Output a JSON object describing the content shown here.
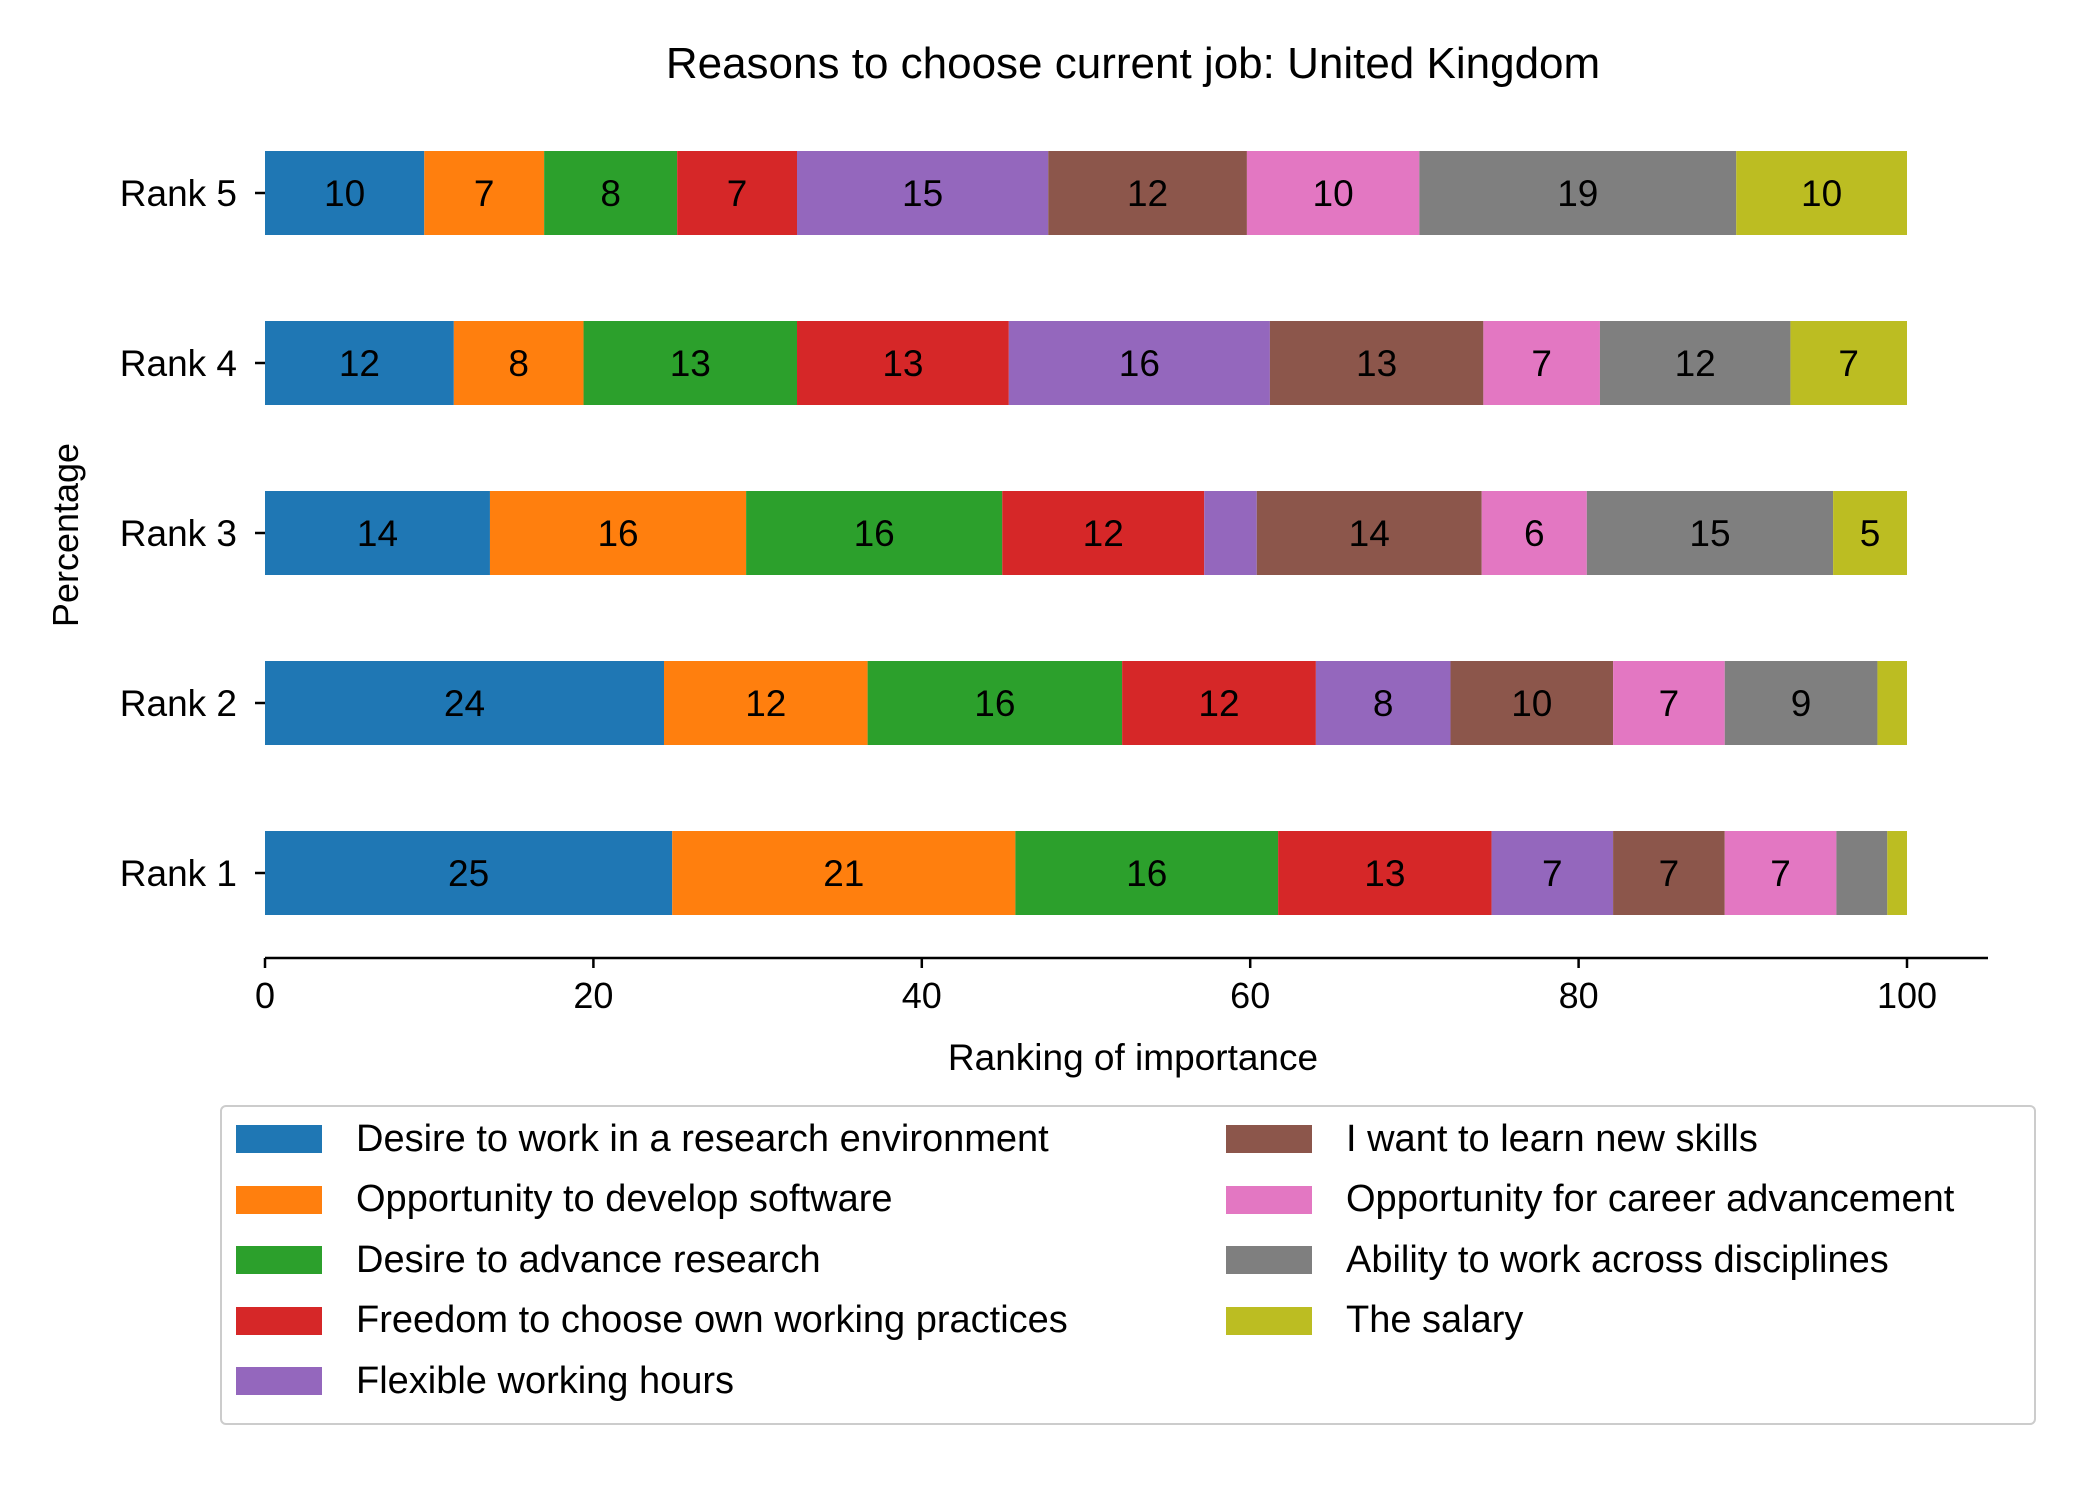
{
  "chart_data": {
    "type": "bar",
    "orientation": "horizontal",
    "stacked": true,
    "title": "Reasons to choose current job: United Kingdom",
    "xlabel": "Ranking of importance",
    "ylabel": "Percentage",
    "xlim": [
      0,
      105
    ],
    "xticks": [
      0,
      20,
      40,
      60,
      80,
      100
    ],
    "grid": false,
    "legend_position": "bottom",
    "categories": [
      "Rank 1",
      "Rank 2",
      "Rank 3",
      "Rank 4",
      "Rank 5"
    ],
    "series": [
      {
        "name": "Desire to work in a research environment",
        "color": "#1f77b4",
        "values": [
          24.8,
          24.3,
          13.7,
          11.5,
          9.7
        ]
      },
      {
        "name": "Opportunity to develop software",
        "color": "#ff7f0e",
        "values": [
          20.9,
          12.4,
          15.6,
          7.9,
          7.3
        ]
      },
      {
        "name": "Desire to advance research",
        "color": "#2ca02c",
        "values": [
          16.0,
          15.5,
          15.6,
          13.0,
          8.1
        ]
      },
      {
        "name": "Freedom to choose own working practices",
        "color": "#d62728",
        "values": [
          13.0,
          11.8,
          12.3,
          12.9,
          7.3
        ]
      },
      {
        "name": "Flexible working hours",
        "color": "#9467bd",
        "values": [
          7.4,
          8.2,
          3.2,
          15.9,
          15.3
        ]
      },
      {
        "name": "I want to learn new skills",
        "color": "#8c564b",
        "values": [
          6.8,
          9.9,
          13.7,
          13.0,
          12.1
        ]
      },
      {
        "name": "Opportunity for career advancement",
        "color": "#e377c2",
        "values": [
          6.8,
          6.8,
          6.4,
          7.1,
          10.5
        ]
      },
      {
        "name": "Ability to work across disciplines",
        "color": "#7f7f7f",
        "values": [
          3.1,
          9.3,
          15.0,
          11.6,
          19.3
        ]
      },
      {
        "name": "The salary",
        "color": "#bcbd22",
        "values": [
          1.2,
          1.8,
          4.5,
          7.1,
          10.4
        ]
      }
    ],
    "bar_labels": [
      [
        "25",
        "21",
        "16",
        "13",
        "7",
        "7",
        "7",
        "",
        ""
      ],
      [
        "24",
        "12",
        "16",
        "12",
        "8",
        "10",
        "7",
        "9",
        ""
      ],
      [
        "14",
        "16",
        "16",
        "12",
        "",
        "14",
        "6",
        "15",
        "5"
      ],
      [
        "12",
        "8",
        "13",
        "13",
        "16",
        "13",
        "7",
        "12",
        "7"
      ],
      [
        "10",
        "7",
        "8",
        "7",
        "15",
        "12",
        "10",
        "19",
        "10"
      ]
    ]
  }
}
